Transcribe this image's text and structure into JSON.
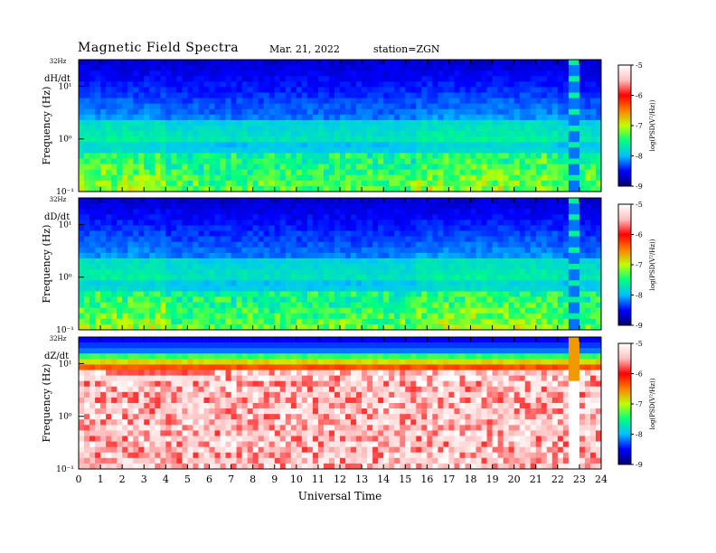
{
  "header": {
    "title": "Magnetic  Field  Spectra",
    "date": "Mar. 21, 2022",
    "station": "station=ZGN"
  },
  "chart_data": {
    "type": "heatmap",
    "xlabel": "Universal  Time",
    "x_ticks": [
      "0",
      "1",
      "2",
      "3",
      "4",
      "5",
      "6",
      "7",
      "8",
      "9",
      "10",
      "11",
      "12",
      "13",
      "14",
      "15",
      "16",
      "17",
      "18",
      "19",
      "20",
      "21",
      "22",
      "23",
      "24"
    ],
    "xlim": [
      0,
      24
    ],
    "colorscale": [
      "#000070",
      "#0000ff",
      "#00c0ff",
      "#00ff80",
      "#c0ff00",
      "#ff8000",
      "#ff0000",
      "#ffc0c0",
      "#ffffff"
    ],
    "colorbar": {
      "label": "log(PSD(V²/Hz))",
      "ticks": [
        "-5",
        "-6",
        "-7",
        "-8",
        "-9"
      ],
      "range": [
        -9,
        -5
      ]
    },
    "panels": [
      {
        "name": "dH/dt",
        "ylabel": "Frequency  (Hz)",
        "y_top_label": "32Hz",
        "y_ticks": [
          "10¹",
          "10⁰",
          "10⁻¹"
        ],
        "ylim": [
          0.1,
          32
        ],
        "yscale": "log",
        "mode": "hd"
      },
      {
        "name": "dD/dt",
        "ylabel": "Frequency  (Hz)",
        "y_top_label": "32Hz",
        "y_ticks": [
          "10¹",
          "10⁰",
          "10⁻¹"
        ],
        "ylim": [
          0.1,
          32
        ],
        "yscale": "log",
        "mode": "hd"
      },
      {
        "name": "dZ/dt",
        "ylabel": "Frequency  (Hz)",
        "y_top_label": "32Hz",
        "y_ticks": [
          "10¹",
          "10⁰",
          "10⁻¹"
        ],
        "ylim": [
          0.1,
          32
        ],
        "yscale": "log",
        "mode": "z"
      }
    ]
  }
}
